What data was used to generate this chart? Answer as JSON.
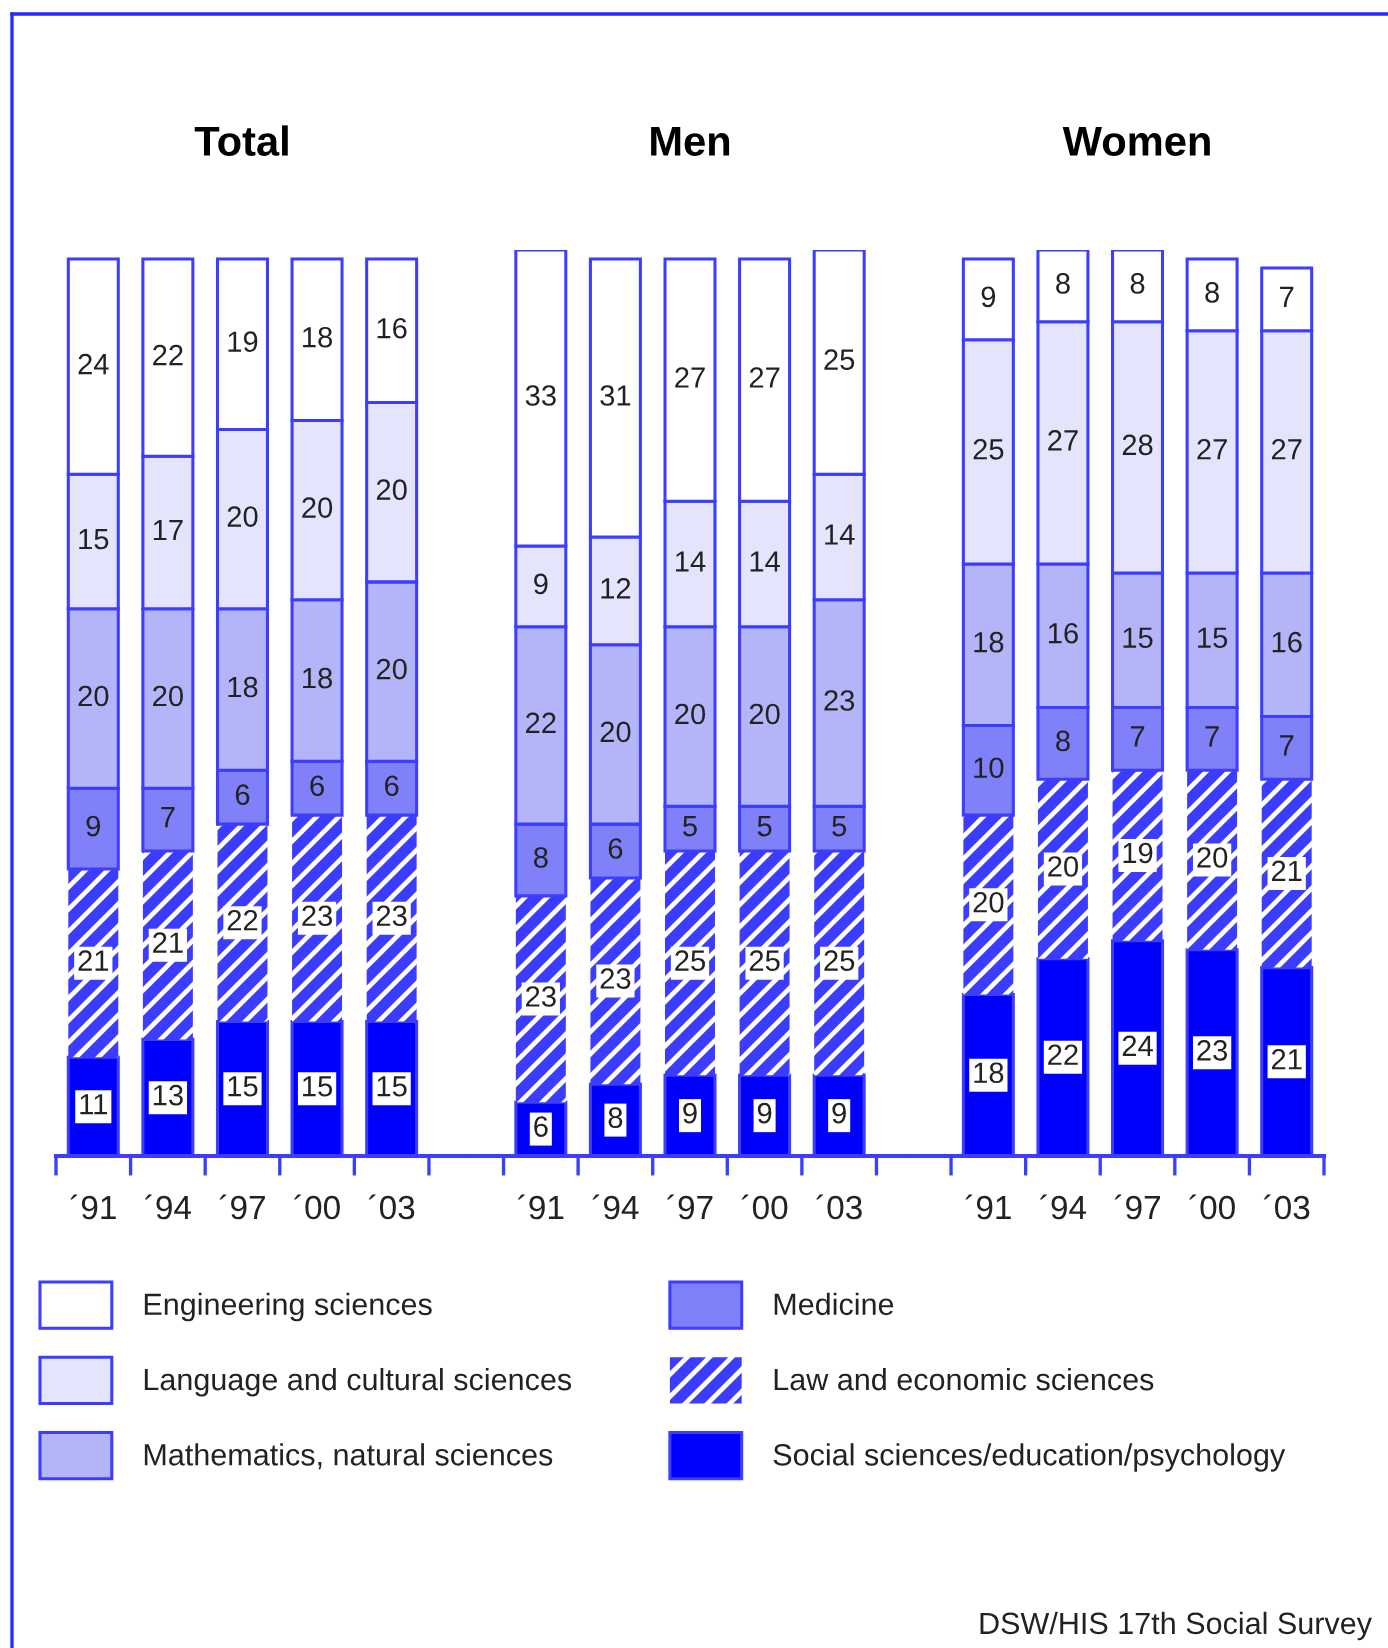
{
  "chart_data": [
    {
      "type": "bar",
      "title": "Total",
      "categories": [
        "´91",
        "´94",
        "´97",
        "´00",
        "´03"
      ],
      "stacked": true,
      "data_labels": true,
      "tick_labels": "x",
      "legend": "bottom",
      "series": [
        {
          "name": "Social sciences/education/psychology",
          "color": "#0000ff",
          "values": [
            11,
            13,
            15,
            15,
            15
          ]
        },
        {
          "name": "Law and economic sciences",
          "color": "#3c3cff",
          "values": [
            21,
            21,
            22,
            23,
            23
          ]
        },
        {
          "name": "Medicine",
          "color": "#8080f8",
          "values": [
            9,
            7,
            6,
            6,
            6
          ]
        },
        {
          "name": "Mathematics, natural sciences",
          "color": "#b4b4f8",
          "values": [
            20,
            20,
            18,
            18,
            20
          ]
        },
        {
          "name": "Language and cultural sciences",
          "color": "#e4e4fc",
          "values": [
            15,
            17,
            20,
            20,
            20
          ]
        },
        {
          "name": "Engineering sciences",
          "color": "#ffffff",
          "values": [
            24,
            22,
            19,
            18,
            16
          ]
        }
      ]
    },
    {
      "type": "bar",
      "title": "Men",
      "categories": [
        "´91",
        "´94",
        "´97",
        "´00",
        "´03"
      ],
      "stacked": true,
      "data_labels": true,
      "tick_labels": "x",
      "series": [
        {
          "color": "#0000ff",
          "values": [
            6,
            8,
            9,
            9,
            9
          ]
        },
        {
          "color": "#3c3cff",
          "values": [
            23,
            23,
            25,
            25,
            25
          ]
        },
        {
          "color": "#8080f8",
          "values": [
            8,
            6,
            5,
            5,
            5
          ]
        },
        {
          "color": "#b4b4f8",
          "values": [
            22,
            20,
            20,
            20,
            23
          ]
        },
        {
          "color": "#e4e4fc",
          "values": [
            9,
            12,
            14,
            14,
            14
          ]
        },
        {
          "color": "#ffffff",
          "values": [
            33,
            31,
            27,
            27,
            25
          ]
        }
      ]
    },
    {
      "type": "bar",
      "title": "Women",
      "categories": [
        "´91",
        "´94",
        "´97",
        "´00",
        "´03"
      ],
      "stacked": true,
      "data_labels": true,
      "tick_labels": "x",
      "annotations": [
        "DSW/HIS 17th Social Survey"
      ],
      "series": [
        {
          "color": "#0000ff",
          "values": [
            18,
            22,
            24,
            23,
            21
          ]
        },
        {
          "color": "#3c3cff",
          "values": [
            20,
            20,
            19,
            20,
            21
          ]
        },
        {
          "color": "#8080f8",
          "values": [
            10,
            8,
            7,
            7,
            7
          ]
        },
        {
          "color": "#b4b4f8",
          "values": [
            18,
            16,
            15,
            15,
            16
          ]
        },
        {
          "color": "#e4e4fc",
          "values": [
            25,
            27,
            28,
            27,
            27
          ]
        },
        {
          "color": "#ffffff",
          "values": [
            9,
            8,
            8,
            8,
            7
          ]
        }
      ]
    }
  ]
}
